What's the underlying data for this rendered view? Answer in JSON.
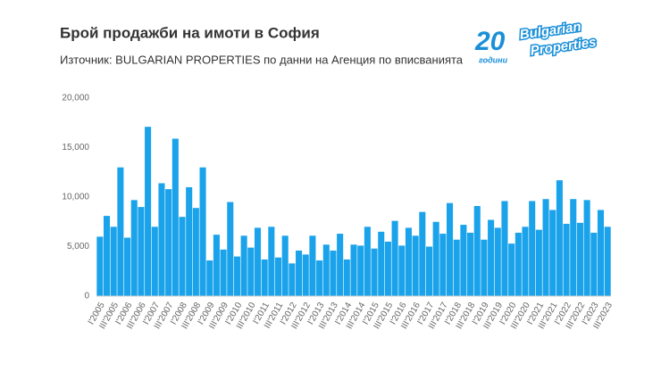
{
  "chart_data": {
    "type": "bar",
    "title": "Брой продажби на имоти в София",
    "subtitle": "Източник: BULGARIAN PROPERTIES по данни на Агенция по вписванията",
    "logo": {
      "number": "20",
      "years": "години",
      "brand_line1": "Bulgarian",
      "brand_line2": "Properties"
    },
    "categories": [
      "I'2005",
      null,
      "III'2005",
      null,
      "I'2006",
      null,
      "III'2006",
      null,
      "I'2007",
      null,
      "III'2007",
      null,
      "I'2008",
      null,
      "III'2008",
      null,
      "I'2009",
      null,
      "III'2009",
      null,
      "I'2010",
      null,
      "III'2010",
      null,
      "I'2011",
      null,
      "III'2011",
      null,
      "I'2012",
      null,
      "III'2012",
      null,
      "I'2013",
      null,
      "III'2013",
      null,
      "I'2014",
      null,
      "III'2014",
      null,
      "I'2015",
      null,
      "III'2015",
      null,
      "I'2016",
      null,
      "III'2016",
      null,
      "I'2017",
      null,
      "III'2017",
      null,
      "I'2018",
      null,
      "III'2018",
      null,
      "I'2019",
      null,
      "III'2019",
      null,
      "I'2020",
      null,
      "III'2020",
      null,
      "I'2021",
      null,
      "III'2021",
      null,
      "I'2022",
      null,
      "III'2022",
      null,
      "I'2023",
      null,
      "III'2023"
    ],
    "values": [
      6000,
      8100,
      7000,
      13000,
      5900,
      9700,
      9000,
      17100,
      7000,
      11400,
      10800,
      15900,
      8000,
      11000,
      8900,
      13000,
      3600,
      6200,
      4700,
      9500,
      4000,
      6100,
      4900,
      6900,
      3700,
      7000,
      3900,
      6100,
      3300,
      4600,
      4200,
      6100,
      3600,
      5200,
      4600,
      6300,
      3700,
      5200,
      5100,
      7000,
      4800,
      6500,
      5500,
      7600,
      5100,
      6900,
      6100,
      8500,
      5000,
      7500,
      6300,
      9400,
      5700,
      7200,
      6400,
      9100,
      5700,
      7700,
      6900,
      9600,
      5300,
      6400,
      7000,
      9600,
      6700,
      9800,
      8700,
      11700,
      7300,
      9800,
      7400,
      9700,
      6400,
      8700,
      7000
    ],
    "color": "#1aa3ea",
    "ylim": [
      0,
      20000
    ],
    "yticks": [
      0,
      {
        "value": 5000,
        "label": "5,000"
      },
      {
        "value": 10000,
        "label": "10,000"
      },
      {
        "value": 15000,
        "label": "15,000"
      },
      {
        "value": 20000,
        "label": "20,000"
      }
    ],
    "grid": false
  }
}
